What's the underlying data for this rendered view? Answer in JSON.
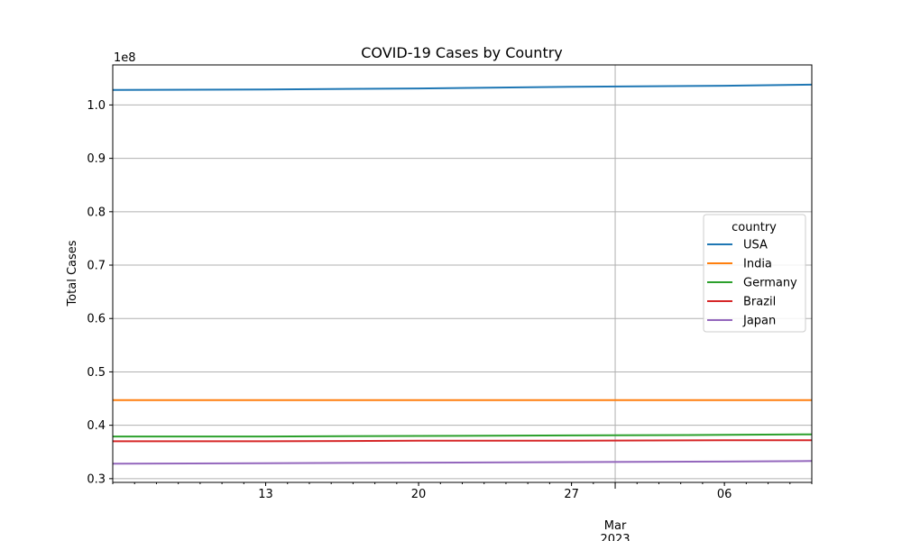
{
  "chart_data": {
    "type": "line",
    "title": "COVID-19 Cases by Country",
    "xlabel": "",
    "ylabel": "Total Cases",
    "y_offset_label": "1e8",
    "ylim": [
      0.293,
      1.075
    ],
    "xlim": [
      "2023-02-06",
      "2023-03-10"
    ],
    "x_major_ticks": [
      {
        "date": "2023-02-13",
        "label": "13"
      },
      {
        "date": "2023-02-20",
        "label": "20"
      },
      {
        "date": "2023-02-27",
        "label": "27"
      },
      {
        "date": "2023-03-06",
        "label": "06"
      }
    ],
    "x_month_tick": {
      "date": "2023-03-01",
      "label": "Mar",
      "year": "2023"
    },
    "y_ticks": [
      {
        "value": 0.3,
        "label": "0.3"
      },
      {
        "value": 0.4,
        "label": "0.4"
      },
      {
        "value": 0.5,
        "label": "0.5"
      },
      {
        "value": 0.6,
        "label": "0.6"
      },
      {
        "value": 0.7,
        "label": "0.7"
      },
      {
        "value": 0.8,
        "label": "0.8"
      },
      {
        "value": 0.9,
        "label": "0.9"
      },
      {
        "value": 1.0,
        "label": "1.0"
      }
    ],
    "grid": true,
    "legend": {
      "title": "country",
      "placement": "center-right"
    },
    "x": [
      "2023-02-06",
      "2023-02-13",
      "2023-02-20",
      "2023-02-27",
      "2023-03-06",
      "2023-03-10"
    ],
    "series": [
      {
        "name": "USA",
        "color": "#1f77b4",
        "values": [
          1.028,
          1.029,
          1.031,
          1.034,
          1.036,
          1.038
        ]
      },
      {
        "name": "India",
        "color": "#ff7f0e",
        "values": [
          0.447,
          0.447,
          0.447,
          0.447,
          0.447,
          0.447
        ]
      },
      {
        "name": "Germany",
        "color": "#2ca02c",
        "values": [
          0.379,
          0.379,
          0.38,
          0.381,
          0.382,
          0.383
        ]
      },
      {
        "name": "Brazil",
        "color": "#d62728",
        "values": [
          0.37,
          0.37,
          0.371,
          0.371,
          0.372,
          0.372
        ]
      },
      {
        "name": "Japan",
        "color": "#9467bd",
        "values": [
          0.328,
          0.329,
          0.33,
          0.331,
          0.332,
          0.333
        ]
      }
    ]
  }
}
